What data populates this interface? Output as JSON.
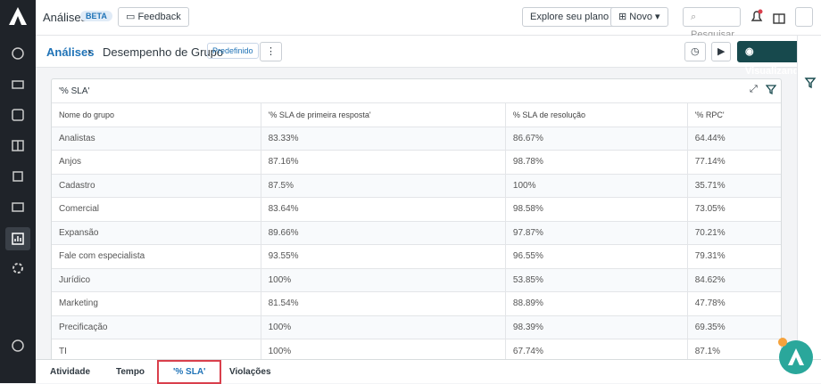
{
  "topbar": {
    "title": "Análises",
    "badge": "BETA",
    "feedback": "Feedback",
    "explore": "Explore seu plano",
    "novo": "Novo",
    "search": "Pesquisar"
  },
  "breadcrumb": {
    "root": "Análises",
    "page": "Desempenho de Grupo",
    "tag": "Predefinido",
    "mode": "Visualizando"
  },
  "card": {
    "title": "'% SLA'"
  },
  "table": {
    "header": [
      "Nome do grupo",
      "'% SLA de primeira resposta'",
      "% SLA de resolução",
      "'% RPC'"
    ],
    "rows": [
      [
        "Analistas",
        "83.33%",
        "86.67%",
        "64.44%"
      ],
      [
        "Anjos",
        "87.16%",
        "98.78%",
        "77.14%"
      ],
      [
        "Cadastro",
        "87.5%",
        "100%",
        "35.71%"
      ],
      [
        "Comercial",
        "83.64%",
        "98.58%",
        "73.05%"
      ],
      [
        "Expansão",
        "89.66%",
        "97.87%",
        "70.21%"
      ],
      [
        "Fale com especialista",
        "93.55%",
        "96.55%",
        "79.31%"
      ],
      [
        "Jurídico",
        "100%",
        "53.85%",
        "84.62%"
      ],
      [
        "Marketing",
        "81.54%",
        "88.89%",
        "47.78%"
      ],
      [
        "Precificação",
        "100%",
        "98.39%",
        "69.35%"
      ],
      [
        "TI",
        "100%",
        "67.74%",
        "87.1%"
      ]
    ]
  },
  "tabs": [
    "Atividade",
    "Tempo",
    "'% SLA'",
    "Violações"
  ]
}
